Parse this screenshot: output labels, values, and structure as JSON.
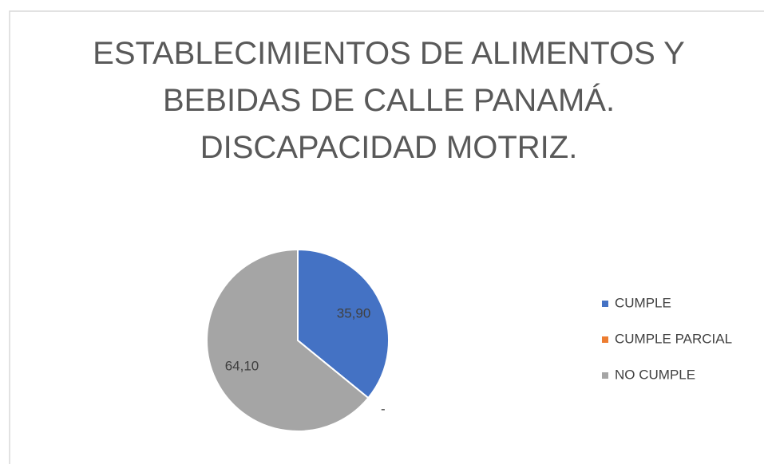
{
  "chart_data": {
    "type": "pie",
    "title": "ESTABLECIMIENTOS DE ALIMENTOS Y BEBIDAS DE CALLE PANAMÁ. DISCAPACIDAD MOTRIZ.",
    "categories": [
      "CUMPLE",
      "CUMPLE PARCIAL",
      "NO CUMPLE"
    ],
    "values": [
      35.9,
      0,
      64.1
    ],
    "value_labels": [
      "35,90",
      "-",
      "64,10"
    ],
    "colors": [
      "#4472c4",
      "#ed7d31",
      "#a5a5a5"
    ],
    "legend": "right"
  }
}
